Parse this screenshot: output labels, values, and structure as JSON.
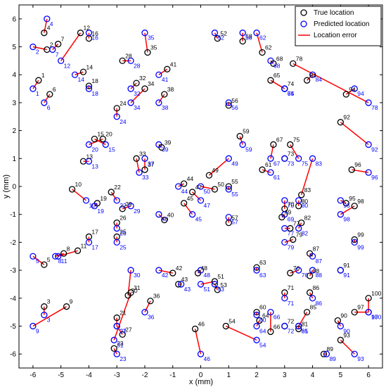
{
  "chart_data": {
    "type": "scatter",
    "xlabel": "x (mm)",
    "ylabel": "y (mm)",
    "xlim": [
      -6.5,
      6.5
    ],
    "ylim": [
      -6.5,
      6.5
    ],
    "xticks": [
      -6,
      -5,
      -4,
      -3,
      -2,
      -1,
      0,
      1,
      2,
      3,
      4,
      5,
      6
    ],
    "yticks": [
      -6,
      -5,
      -4,
      -3,
      -2,
      -1,
      0,
      1,
      2,
      3,
      4,
      5,
      6
    ],
    "grid": false,
    "legend_position": "top-right",
    "legend": {
      "true_location": "True location",
      "predicted_location": "Predicted location",
      "location_error": "Location error"
    },
    "colors": {
      "true": "#000000",
      "predicted": "#0000ff",
      "error": "#ff0000"
    },
    "points": [
      {
        "id": "1",
        "true": [
          -5.8,
          3.8
        ],
        "pred": [
          -6.0,
          3.5
        ]
      },
      {
        "id": "2",
        "true": [
          -5.5,
          4.9
        ],
        "pred": [
          -6.0,
          5.0
        ]
      },
      {
        "id": "3",
        "true": [
          -5.6,
          -4.3
        ],
        "pred": [
          -5.6,
          -4.6
        ]
      },
      {
        "id": "4",
        "true": [
          -5.6,
          5.5
        ],
        "pred": [
          -5.5,
          6.0
        ]
      },
      {
        "id": "5",
        "true": [
          -5.6,
          -2.8
        ],
        "pred": [
          -6.0,
          -2.5
        ]
      },
      {
        "id": "6",
        "true": [
          -5.4,
          3.3
        ],
        "pred": [
          -5.6,
          3.0
        ]
      },
      {
        "id": "7",
        "true": [
          -5.1,
          5.1
        ],
        "pred": [
          -5.3,
          4.9
        ]
      },
      {
        "id": "8",
        "true": [
          -4.9,
          -2.4
        ],
        "pred": [
          -5.2,
          -2.5
        ]
      },
      {
        "id": "9",
        "true": [
          -4.8,
          -4.3
        ],
        "pred": [
          -6.0,
          -5.0
        ]
      },
      {
        "id": "10",
        "true": [
          -4.6,
          -0.1
        ],
        "pred": [
          -4.1,
          -0.5
        ]
      },
      {
        "id": "11",
        "true": [
          -4.4,
          -2.3
        ],
        "pred": [
          -5.1,
          -2.5
        ]
      },
      {
        "id": "12",
        "true": [
          -4.3,
          5.5
        ],
        "pred": [
          -5.0,
          4.5
        ]
      },
      {
        "id": "13",
        "true": [
          -4.2,
          0.9
        ],
        "pred": [
          -4.0,
          0.9
        ]
      },
      {
        "id": "14",
        "true": [
          -4.2,
          4.1
        ],
        "pred": [
          -4.5,
          4.0
        ]
      },
      {
        "id": "15",
        "true": [
          -3.8,
          1.7
        ],
        "pred": [
          -3.4,
          1.5
        ]
      },
      {
        "id": "16",
        "true": [
          -4.0,
          5.3
        ],
        "pred": [
          -4.0,
          5.5
        ]
      },
      {
        "id": "17",
        "true": [
          -4.0,
          -1.8
        ],
        "pred": [
          -4.0,
          -2.0
        ]
      },
      {
        "id": "18",
        "true": [
          -4.0,
          3.6
        ],
        "pred": [
          -4.0,
          3.5
        ]
      },
      {
        "id": "19",
        "true": [
          -3.7,
          -0.6
        ],
        "pred": [
          -3.8,
          -0.7
        ]
      },
      {
        "id": "20",
        "true": [
          -3.5,
          1.7
        ],
        "pred": [
          -4.0,
          1.5
        ]
      },
      {
        "id": "21",
        "true": [
          -3.0,
          -4.7
        ],
        "pred": [
          -3.0,
          -5.0
        ]
      },
      {
        "id": "22",
        "true": [
          -3.2,
          -0.2
        ],
        "pred": [
          -3.0,
          -0.5
        ]
      },
      {
        "id": "23",
        "true": [
          -3.1,
          -5.8
        ],
        "pred": [
          -3.0,
          -6.0
        ]
      },
      {
        "id": "24",
        "true": [
          -3.0,
          2.8
        ],
        "pred": [
          -3.0,
          2.5
        ]
      },
      {
        "id": "25",
        "true": [
          -3.0,
          -1.8
        ],
        "pred": [
          -3.0,
          -2.0
        ]
      },
      {
        "id": "26",
        "true": [
          -3.0,
          -1.3
        ],
        "pred": [
          -3.0,
          -1.5
        ]
      },
      {
        "id": "27",
        "true": [
          -2.8,
          -5.3
        ],
        "pred": [
          -3.0,
          -5.0
        ]
      },
      {
        "id": "28",
        "true": [
          -2.8,
          4.5
        ],
        "pred": [
          -2.5,
          4.5
        ]
      },
      {
        "id": "29",
        "true": [
          -2.8,
          -0.8
        ],
        "pred": [
          -2.5,
          -0.7
        ]
      },
      {
        "id": "30",
        "true": [
          -2.6,
          -3.9
        ],
        "pred": [
          -2.5,
          -3.0
        ]
      },
      {
        "id": "31",
        "true": [
          -2.5,
          -3.8
        ],
        "pred": [
          -3.1,
          -5.5
        ]
      },
      {
        "id": "32",
        "true": [
          -2.3,
          3.7
        ],
        "pred": [
          -2.5,
          3.5
        ]
      },
      {
        "id": "33",
        "true": [
          -2.3,
          1.0
        ],
        "pred": [
          -2.2,
          0.5
        ]
      },
      {
        "id": "34",
        "true": [
          -2.0,
          3.5
        ],
        "pred": [
          -2.5,
          3.0
        ]
      },
      {
        "id": "35",
        "true": [
          -1.9,
          4.8
        ],
        "pred": [
          -2.0,
          5.5
        ]
      },
      {
        "id": "36",
        "true": [
          -1.8,
          -4.1
        ],
        "pred": [
          -2.0,
          -4.5
        ]
      },
      {
        "id": "37",
        "true": [
          -2.0,
          0.6
        ],
        "pred": [
          -2.0,
          1.0
        ]
      },
      {
        "id": "38",
        "true": [
          -1.3,
          3.3
        ],
        "pred": [
          -1.5,
          3.0
        ]
      },
      {
        "id": "39",
        "true": [
          -1.4,
          1.4
        ],
        "pred": [
          -1.5,
          1.5
        ]
      },
      {
        "id": "40",
        "true": [
          -1.3,
          -1.2
        ],
        "pred": [
          -1.5,
          -1.0
        ]
      },
      {
        "id": "41",
        "true": [
          -1.2,
          4.2
        ],
        "pred": [
          -1.5,
          4.0
        ]
      },
      {
        "id": "42",
        "true": [
          -1.0,
          -3.1
        ],
        "pred": [
          -1.5,
          -3.0
        ]
      },
      {
        "id": "43",
        "true": [
          -0.8,
          -3.5
        ],
        "pred": [
          -0.7,
          -3.5
        ]
      },
      {
        "id": "44",
        "true": [
          -0.6,
          0.1
        ],
        "pred": [
          -0.8,
          0.0
        ]
      },
      {
        "id": "45",
        "true": [
          -0.6,
          -0.6
        ],
        "pred": [
          -0.3,
          -1.0
        ]
      },
      {
        "id": "46",
        "true": [
          -0.2,
          -5.1
        ],
        "pred": [
          0.0,
          -6.0
        ]
      },
      {
        "id": "47",
        "true": [
          -0.3,
          -0.2
        ],
        "pred": [
          0.0,
          -0.5
        ]
      },
      {
        "id": "48",
        "true": [
          -0.1,
          -3.1
        ],
        "pred": [
          0.0,
          -3.0
        ]
      },
      {
        "id": "49",
        "true": [
          0.3,
          0.4
        ],
        "pred": [
          1.0,
          1.0
        ]
      },
      {
        "id": "50",
        "true": [
          0.5,
          -0.1
        ],
        "pred": [
          0.0,
          0.0
        ]
      },
      {
        "id": "51",
        "true": [
          0.5,
          -3.4
        ],
        "pred": [
          0.0,
          -3.5
        ]
      },
      {
        "id": "52",
        "true": [
          0.6,
          5.3
        ],
        "pred": [
          0.5,
          5.5
        ]
      },
      {
        "id": "53",
        "true": [
          0.6,
          -3.7
        ],
        "pred": [
          0.5,
          -3.5
        ]
      },
      {
        "id": "54",
        "true": [
          0.9,
          -5.0
        ],
        "pred": [
          2.0,
          -5.5
        ]
      },
      {
        "id": "55",
        "true": [
          1.0,
          0.0
        ],
        "pred": [
          1.0,
          -0.1
        ]
      },
      {
        "id": "56",
        "true": [
          1.0,
          2.9
        ],
        "pred": [
          1.0,
          3.0
        ]
      },
      {
        "id": "57",
        "true": [
          1.0,
          -1.3
        ],
        "pred": [
          1.0,
          -1.1
        ]
      },
      {
        "id": "58",
        "true": [
          1.5,
          5.2
        ],
        "pred": [
          1.5,
          5.5
        ]
      },
      {
        "id": "59",
        "true": [
          1.4,
          1.8
        ],
        "pred": [
          1.5,
          1.5
        ]
      },
      {
        "id": "60",
        "true": [
          2.0,
          -4.5
        ],
        "pred": [
          2.0,
          -4.6
        ]
      },
      {
        "id": "61",
        "true": [
          2.2,
          0.6
        ],
        "pred": [
          2.5,
          0.5
        ]
      },
      {
        "id": "62",
        "true": [
          2.2,
          4.8
        ],
        "pred": [
          2.0,
          5.5
        ]
      },
      {
        "id": "63",
        "true": [
          2.0,
          -2.9
        ],
        "pred": [
          2.0,
          -3.0
        ]
      },
      {
        "id": "64",
        "true": [
          2.1,
          -4.8
        ],
        "pred": [
          2.0,
          -5.0
        ]
      },
      {
        "id": "65",
        "true": [
          2.5,
          3.8
        ],
        "pred": [
          3.0,
          3.5
        ]
      },
      {
        "id": "66",
        "true": [
          2.5,
          -5.2
        ],
        "pred": [
          2.5,
          -4.5
        ]
      },
      {
        "id": "67",
        "true": [
          2.6,
          1.5
        ],
        "pred": [
          2.5,
          1.0
        ]
      },
      {
        "id": "68",
        "true": [
          2.6,
          4.4
        ],
        "pred": [
          2.5,
          4.5
        ]
      },
      {
        "id": "69",
        "true": [
          2.9,
          -1.1
        ],
        "pred": [
          3.0,
          -1.0
        ]
      },
      {
        "id": "70",
        "true": [
          3.0,
          -0.8
        ],
        "pred": [
          3.0,
          -0.5
        ]
      },
      {
        "id": "71",
        "true": [
          3.0,
          -3.8
        ],
        "pred": [
          3.0,
          -4.0
        ]
      },
      {
        "id": "72",
        "true": [
          3.0,
          -5.0
        ],
        "pred": [
          3.0,
          -5.0
        ]
      },
      {
        "id": "73",
        "true": [
          3.0,
          1.0
        ],
        "pred": [
          3.0,
          1.0
        ]
      },
      {
        "id": "74",
        "true": [
          3.0,
          3.5
        ],
        "pred": [
          3.0,
          3.5
        ]
      },
      {
        "id": "75",
        "true": [
          3.2,
          1.5
        ],
        "pred": [
          3.5,
          1.0
        ]
      },
      {
        "id": "76",
        "true": [
          3.2,
          -3.1
        ],
        "pred": [
          3.5,
          -3.0
        ]
      },
      {
        "id": "77",
        "true": [
          3.2,
          -1.5
        ],
        "pred": [
          3.0,
          -1.5
        ]
      },
      {
        "id": "78",
        "true": [
          3.3,
          4.4
        ],
        "pred": [
          6.0,
          3.0
        ]
      },
      {
        "id": "79",
        "true": [
          3.3,
          -1.9
        ],
        "pred": [
          3.0,
          -2.0
        ]
      },
      {
        "id": "80",
        "true": [
          3.5,
          -0.7
        ],
        "pred": [
          3.5,
          -0.5
        ]
      },
      {
        "id": "81",
        "true": [
          3.5,
          -5.1
        ],
        "pred": [
          3.5,
          -5.0
        ]
      },
      {
        "id": "82",
        "true": [
          3.6,
          -1.3
        ],
        "pred": [
          3.5,
          -1.5
        ]
      },
      {
        "id": "83",
        "true": [
          3.6,
          -0.3
        ],
        "pred": [
          4.0,
          1.0
        ]
      },
      {
        "id": "84",
        "true": [
          3.8,
          3.8
        ],
        "pred": [
          4.0,
          4.0
        ]
      },
      {
        "id": "85",
        "true": [
          3.8,
          -4.5
        ],
        "pred": [
          3.5,
          -5.0
        ]
      },
      {
        "id": "86",
        "true": [
          3.9,
          -3.8
        ],
        "pred": [
          4.0,
          -4.0
        ]
      },
      {
        "id": "87",
        "true": [
          3.9,
          -2.4
        ],
        "pred": [
          4.0,
          -2.5
        ]
      },
      {
        "id": "88",
        "true": [
          3.9,
          -3.2
        ],
        "pred": [
          4.0,
          -3.0
        ]
      },
      {
        "id": "89",
        "true": [
          4.4,
          -6.0
        ],
        "pred": [
          4.5,
          -6.0
        ]
      },
      {
        "id": "90",
        "true": [
          4.9,
          -4.8
        ],
        "pred": [
          5.0,
          -5.0
        ]
      },
      {
        "id": "91",
        "true": [
          5.0,
          -3.0
        ],
        "pred": [
          5.0,
          -3.0
        ]
      },
      {
        "id": "92",
        "true": [
          5.0,
          2.3
        ],
        "pred": [
          6.0,
          1.5
        ]
      },
      {
        "id": "93",
        "true": [
          5.0,
          -5.5
        ],
        "pred": [
          5.5,
          -6.0
        ]
      },
      {
        "id": "94",
        "true": [
          5.2,
          3.3
        ],
        "pred": [
          5.5,
          3.5
        ]
      },
      {
        "id": "95",
        "true": [
          5.2,
          -0.6
        ],
        "pred": [
          5.0,
          -0.5
        ]
      },
      {
        "id": "96",
        "true": [
          5.4,
          0.6
        ],
        "pred": [
          6.0,
          0.5
        ]
      },
      {
        "id": "97",
        "true": [
          5.5,
          -4.5
        ],
        "pred": [
          6.0,
          -4.5
        ]
      },
      {
        "id": "98",
        "true": [
          5.5,
          -0.7
        ],
        "pred": [
          5.0,
          -1.0
        ]
      },
      {
        "id": "99",
        "true": [
          5.5,
          -1.9
        ],
        "pred": [
          5.5,
          -2.0
        ]
      },
      {
        "id": "100",
        "true": [
          6.0,
          -4.0
        ],
        "pred": [
          6.0,
          -4.5
        ]
      }
    ]
  }
}
